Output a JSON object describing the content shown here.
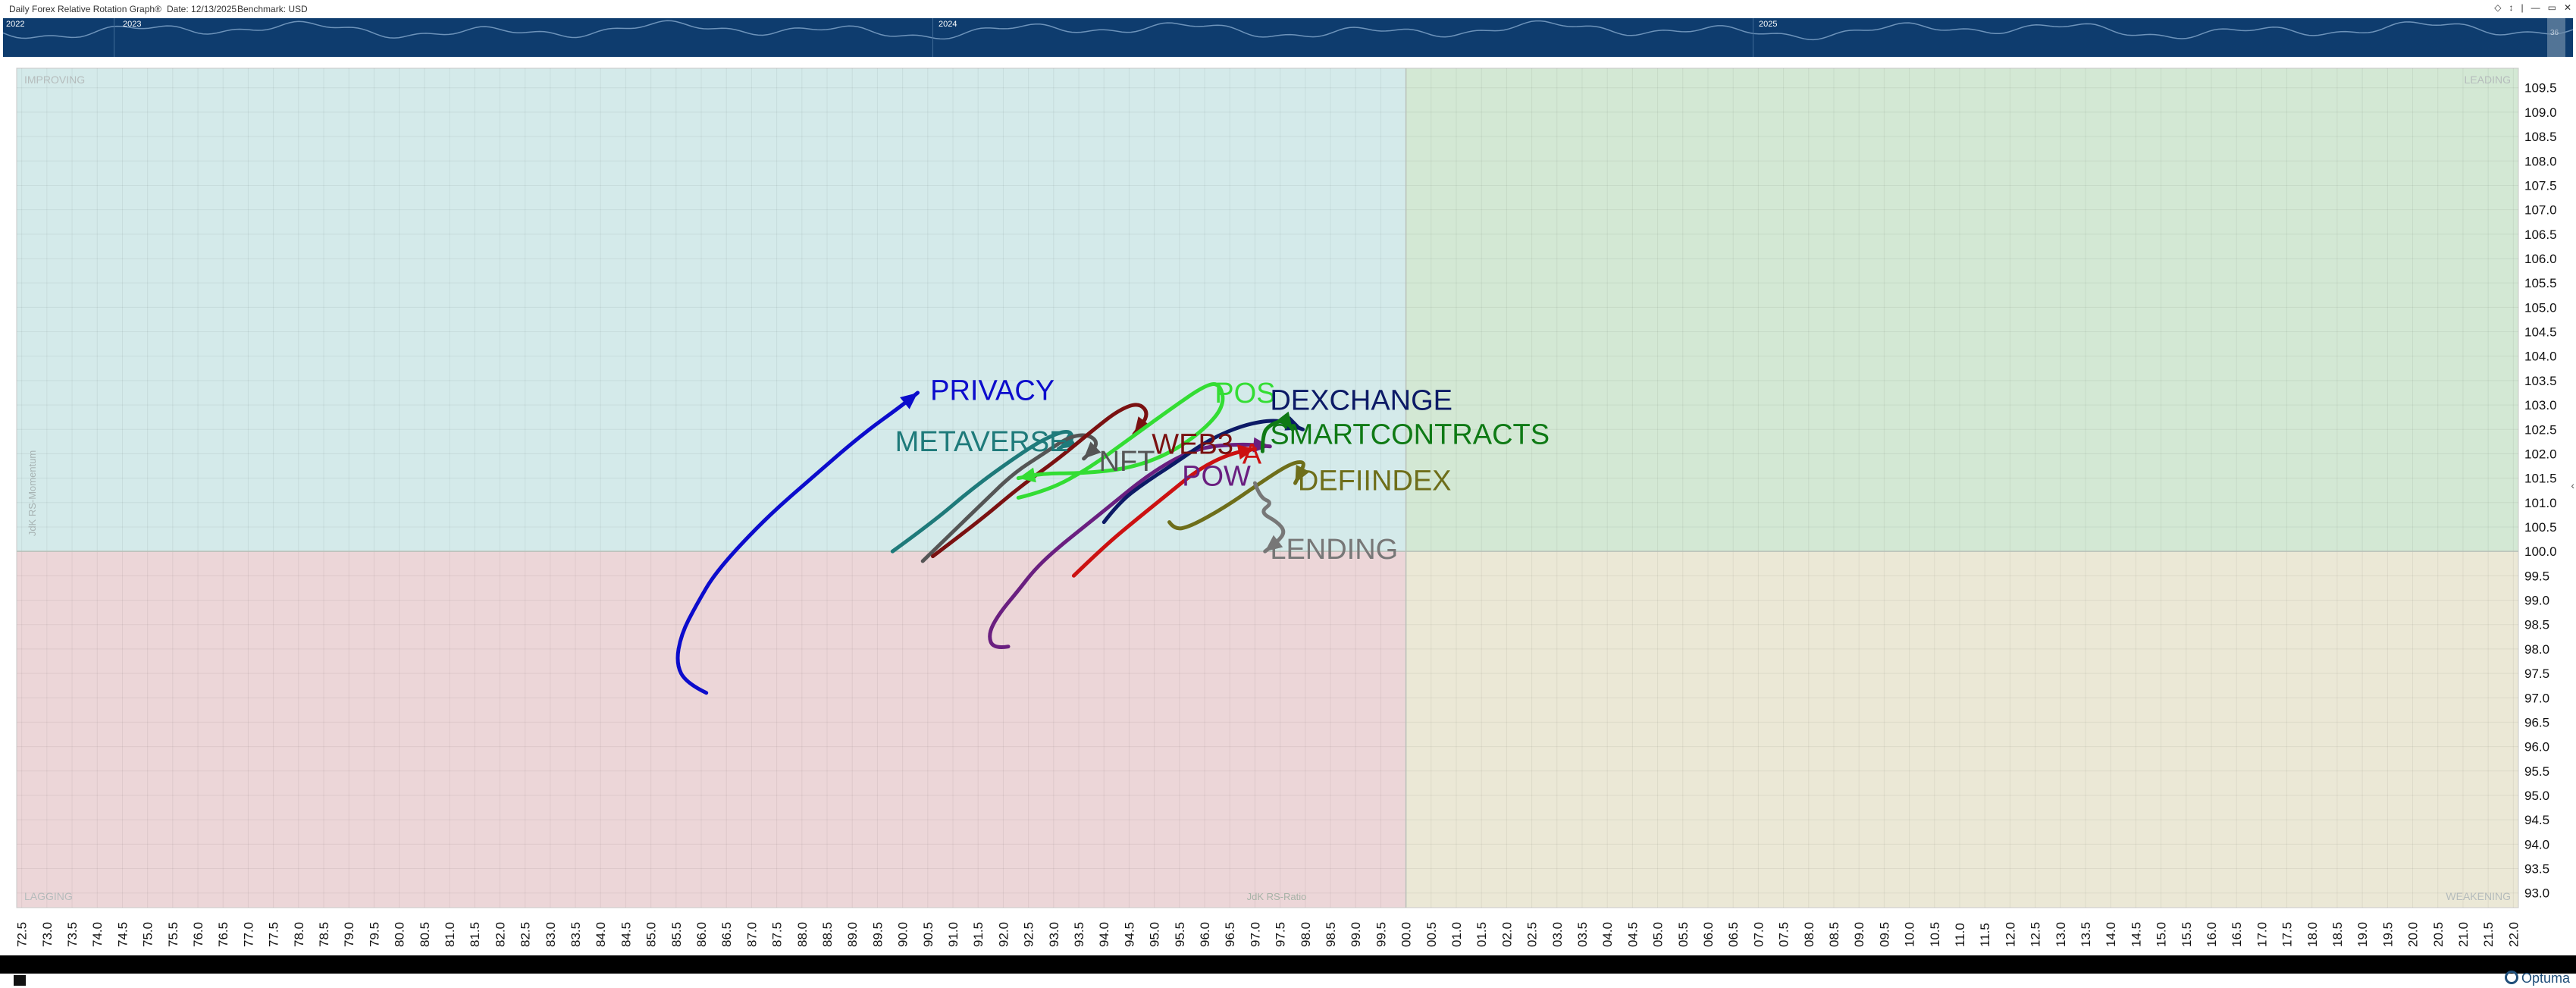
{
  "header": {
    "title": "Daily Forex Relative Rotation Graph®",
    "date": "Date: 12/13/2025",
    "benchmark": "Benchmark:  USD",
    "controls": [
      "◇",
      "↕",
      "|",
      "—",
      "▭",
      "✕"
    ]
  },
  "timeline": {
    "years": [
      "2022",
      "2023",
      "2024",
      "2025"
    ],
    "handle_label": "36"
  },
  "branding": {
    "name": "Optuma"
  },
  "chart_data": {
    "type": "scatter",
    "xlabel": "JdK RS-Ratio",
    "ylabel": "JdK RS-Momentum",
    "xlim": [
      72.4,
      122.1
    ],
    "ylim": [
      92.7,
      109.9
    ],
    "xticks": [
      "72.5",
      "73.0",
      "73.5",
      "74.0",
      "74.5",
      "75.0",
      "75.5",
      "76.0",
      "76.5",
      "77.0",
      "77.5",
      "78.0",
      "78.5",
      "79.0",
      "79.5",
      "80.0",
      "80.5",
      "81.0",
      "81.5",
      "82.0",
      "82.5",
      "83.0",
      "83.5",
      "84.0",
      "84.5",
      "85.0",
      "85.5",
      "86.0",
      "86.5",
      "87.0",
      "87.5",
      "88.0",
      "88.5",
      "89.0",
      "89.5",
      "90.0",
      "90.5",
      "91.0",
      "91.5",
      "92.0",
      "92.5",
      "93.0",
      "93.5",
      "94.0",
      "94.5",
      "95.0",
      "95.5",
      "96.0",
      "96.5",
      "97.0",
      "97.5",
      "98.0",
      "98.5",
      "99.0",
      "99.5",
      "00.0",
      "00.5",
      "01.0",
      "01.5",
      "02.0",
      "02.5",
      "03.0",
      "03.5",
      "04.0",
      "04.5",
      "05.0",
      "05.5",
      "06.0",
      "06.5",
      "07.0",
      "07.5",
      "08.0",
      "08.5",
      "09.0",
      "09.5",
      "10.0",
      "10.5",
      "11.0",
      "11.5",
      "12.0",
      "12.5",
      "13.0",
      "13.5",
      "14.0",
      "14.5",
      "15.0",
      "15.5",
      "16.0",
      "16.5",
      "17.0",
      "17.5",
      "18.0",
      "18.5",
      "19.0",
      "19.5",
      "20.0",
      "20.5",
      "21.0",
      "21.5",
      "22.0"
    ],
    "yticks": [
      "93.0",
      "93.5",
      "94.0",
      "94.5",
      "95.0",
      "95.5",
      "96.0",
      "96.5",
      "97.0",
      "97.5",
      "98.0",
      "98.5",
      "99.0",
      "99.5",
      "100.0",
      "100.5",
      "101.0",
      "101.5",
      "102.0",
      "102.5",
      "103.0",
      "103.5",
      "104.0",
      "104.5",
      "105.0",
      "105.5",
      "106.0",
      "106.5",
      "107.0",
      "107.5",
      "108.0",
      "108.5",
      "109.0",
      "109.5"
    ],
    "quadrants": [
      {
        "name": "IMPROVING",
        "position": "top-left",
        "color": "#d4eaea"
      },
      {
        "name": "LEADING",
        "position": "top-right",
        "color": "#d3e8d4"
      },
      {
        "name": "LAGGING",
        "position": "bottom-left",
        "color": "#ecd6d8"
      },
      {
        "name": "WEAKENING",
        "position": "bottom-right",
        "color": "#ebe8d6"
      }
    ],
    "grid": true,
    "center": [
      100,
      100
    ],
    "series": [
      {
        "name": "PRIVACY",
        "color": "#0c0ccc",
        "points": [
          [
            86.1,
            97.1
          ],
          [
            85.7,
            97.3
          ],
          [
            85.5,
            97.7
          ],
          [
            85.6,
            98.3
          ],
          [
            85.9,
            98.9
          ],
          [
            86.3,
            99.6
          ],
          [
            87.3,
            100.7
          ],
          [
            88.3,
            101.6
          ],
          [
            89.2,
            102.4
          ],
          [
            90.0,
            103.0
          ],
          [
            90.3,
            103.25
          ]
        ]
      },
      {
        "name": "METAVERSE",
        "color": "#1e7a7a",
        "points": [
          [
            89.8,
            100.0
          ],
          [
            90.6,
            100.6
          ],
          [
            91.4,
            101.3
          ],
          [
            92.2,
            101.9
          ],
          [
            92.8,
            102.3
          ],
          [
            93.3,
            102.5
          ],
          [
            93.4,
            102.3
          ],
          [
            93.1,
            102.1
          ]
        ]
      },
      {
        "name": "NFT",
        "color": "#555555",
        "points": [
          [
            90.4,
            99.8
          ],
          [
            91.0,
            100.4
          ],
          [
            91.6,
            101.0
          ],
          [
            92.2,
            101.6
          ],
          [
            92.8,
            102.0
          ],
          [
            93.3,
            102.35
          ],
          [
            93.7,
            102.4
          ],
          [
            93.9,
            102.2
          ],
          [
            93.6,
            101.9
          ]
        ]
      },
      {
        "name": "WEB3",
        "color": "#7a1111",
        "points": [
          [
            90.6,
            99.9
          ],
          [
            91.5,
            100.6
          ],
          [
            92.3,
            101.3
          ],
          [
            93.1,
            101.9
          ],
          [
            93.8,
            102.5
          ],
          [
            94.3,
            102.9
          ],
          [
            94.7,
            103.05
          ],
          [
            94.9,
            102.8
          ],
          [
            94.6,
            102.4
          ]
        ]
      },
      {
        "name": "POS",
        "color": "#33dd33",
        "points": [
          [
            92.3,
            101.1
          ],
          [
            92.9,
            101.25
          ],
          [
            93.7,
            101.7
          ],
          [
            94.5,
            102.3
          ],
          [
            95.3,
            102.9
          ],
          [
            96.0,
            103.4
          ],
          [
            96.3,
            103.45
          ],
          [
            96.4,
            103.0
          ],
          [
            96.0,
            102.5
          ],
          [
            95.3,
            102.0
          ],
          [
            94.5,
            101.7
          ],
          [
            93.6,
            101.6
          ],
          [
            92.8,
            101.6
          ],
          [
            92.3,
            101.5
          ]
        ]
      },
      {
        "name": "POW",
        "color": "#6a1f80",
        "points": [
          [
            92.1,
            98.05
          ],
          [
            91.8,
            98.0
          ],
          [
            91.7,
            98.3
          ],
          [
            91.9,
            98.7
          ],
          [
            92.3,
            99.2
          ],
          [
            92.6,
            99.6
          ],
          [
            93.0,
            100.0
          ],
          [
            93.6,
            100.5
          ],
          [
            94.2,
            101.0
          ],
          [
            94.8,
            101.5
          ],
          [
            95.4,
            101.9
          ],
          [
            96.0,
            102.15
          ],
          [
            96.8,
            102.2
          ],
          [
            97.3,
            102.15
          ]
        ]
      },
      {
        "name": "DEXCHANGE",
        "color": "#0c1a66",
        "points": [
          [
            94.0,
            100.6
          ],
          [
            94.3,
            101.0
          ],
          [
            94.8,
            101.4
          ],
          [
            95.4,
            101.8
          ],
          [
            96.1,
            102.3
          ],
          [
            96.8,
            102.6
          ],
          [
            97.4,
            102.7
          ],
          [
            97.7,
            102.6
          ],
          [
            97.95,
            102.5
          ]
        ]
      },
      {
        "name": "SMARTCONTRACTS",
        "color": "#0f7a15",
        "points": [
          [
            97.15,
            102.05
          ],
          [
            97.15,
            102.4
          ],
          [
            97.3,
            102.6
          ],
          [
            97.6,
            102.7
          ],
          [
            97.75,
            102.5
          ]
        ]
      },
      {
        "name": "A",
        "color": "#cc1111",
        "points": [
          [
            93.4,
            99.5
          ],
          [
            94.0,
            100.1
          ],
          [
            94.7,
            100.7
          ],
          [
            95.3,
            101.2
          ],
          [
            95.9,
            101.7
          ],
          [
            96.5,
            102.0
          ],
          [
            97.0,
            102.1
          ]
        ]
      },
      {
        "name": "DEFIINDEX",
        "color": "#6e6e1a",
        "points": [
          [
            95.3,
            100.6
          ],
          [
            95.4,
            100.45
          ],
          [
            95.7,
            100.5
          ],
          [
            96.4,
            100.9
          ],
          [
            97.1,
            101.4
          ],
          [
            97.7,
            101.8
          ],
          [
            98.0,
            101.85
          ],
          [
            97.9,
            101.6
          ],
          [
            97.8,
            101.4
          ]
        ]
      },
      {
        "name": "LENDING",
        "color": "#777777",
        "points": [
          [
            97.0,
            101.4
          ],
          [
            97.1,
            101.1
          ],
          [
            97.35,
            101.0
          ],
          [
            97.1,
            100.8
          ],
          [
            97.45,
            100.6
          ],
          [
            97.6,
            100.4
          ],
          [
            97.45,
            100.2
          ],
          [
            97.2,
            100.0
          ]
        ]
      }
    ]
  }
}
